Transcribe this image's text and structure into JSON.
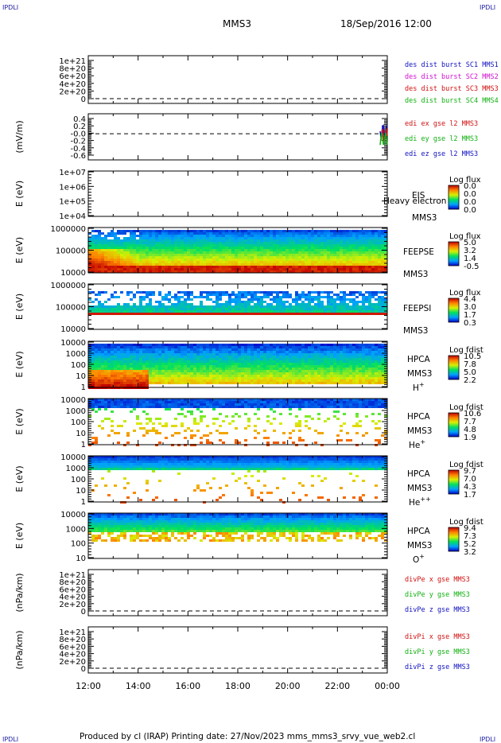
{
  "corners": {
    "tl": "IPDLI",
    "tr": "IPDLI",
    "bl": "IPDLI",
    "br": "IPDLI"
  },
  "header": {
    "spacecraft": "MMS3",
    "datetime": "18/Sep/2016 12:00"
  },
  "footer": {
    "text": "Produced by cl (IRAP)   Printing date: 27/Nov/2023   mms_mms3_srvy_vue_web2.cl"
  },
  "chart_data": [
    {
      "id": "p1",
      "type": "line",
      "ylabel": "",
      "yticks": [
        "1e+21",
        "8e+20",
        "6e+20",
        "4e+20",
        "2e+20",
        "0"
      ],
      "dashed_zero": true,
      "legend": [
        {
          "name": "des dist burst SC1 MMS1",
          "color": "#1010c0"
        },
        {
          "name": "des dist burst SC2 MMS2",
          "color": "#d010d0"
        },
        {
          "name": "des dist burst SC3 MMS3",
          "color": "#d01010"
        },
        {
          "name": "des dist burst SC4 MMS4",
          "color": "#10b010"
        }
      ]
    },
    {
      "id": "p2",
      "type": "line",
      "ylabel": "(mV/m)",
      "yticks": [
        "0.4",
        "0.2",
        "-0.0",
        "-0.2",
        "-0.4",
        "-0.6"
      ],
      "ylim": [
        -0.7,
        0.5
      ],
      "dashed_zero": true,
      "legend": [
        {
          "name": "edi ex gse l2 MMS3",
          "color": "#d01010"
        },
        {
          "name": "edi ey gse l2 MMS3",
          "color": "#10b010"
        },
        {
          "name": "edi ez gse l2 MMS3",
          "color": "#1010c0"
        }
      ]
    },
    {
      "id": "p3",
      "type": "heatmap",
      "ylabel": "E (eV)",
      "yticks": [
        "1e+07",
        "1e+06",
        "1e+05",
        "1e+04"
      ],
      "label_lines": [
        "EIS",
        "Heavy electron to",
        "MMS3"
      ],
      "cbar_title": "Log flux",
      "cbar_ticks": [
        "0.0",
        "0.0",
        "0.0",
        "0.0"
      ]
    },
    {
      "id": "p4",
      "type": "heatmap",
      "ylabel": "E (eV)",
      "yticks": [
        "1000000",
        "100000",
        "10000"
      ],
      "label_lines": [
        "FEEPSE",
        "MMS3"
      ],
      "cbar_title": "Log flux",
      "cbar_ticks": [
        "5.0",
        "3.2",
        "1.4",
        "-0.5"
      ]
    },
    {
      "id": "p5",
      "type": "heatmap",
      "ylabel": "E (eV)",
      "yticks": [
        "1000000",
        "100000",
        "10000"
      ],
      "label_lines": [
        "FEEPSI",
        "MMS3"
      ],
      "cbar_title": "Log flux",
      "cbar_ticks": [
        "4.4",
        "3.0",
        "1.7",
        "0.3"
      ]
    },
    {
      "id": "p6",
      "type": "heatmap",
      "ylabel": "E (eV)",
      "yticks": [
        "10000",
        "1000",
        "100",
        "10",
        "1"
      ],
      "label_lines": [
        "HPCA",
        "MMS3"
      ],
      "species": {
        "base": "H",
        "sup": "+"
      },
      "cbar_title": "Log fdist",
      "cbar_ticks": [
        "10.5",
        "7.8",
        "5.0",
        "2.2"
      ]
    },
    {
      "id": "p7",
      "type": "heatmap",
      "ylabel": "E (eV)",
      "yticks": [
        "10000",
        "1000",
        "100",
        "10",
        "1"
      ],
      "label_lines": [
        "HPCA",
        "MMS3"
      ],
      "species": {
        "base": "He",
        "sup": "+"
      },
      "cbar_title": "Log fdist",
      "cbar_ticks": [
        "10.6",
        "7.7",
        "4.8",
        "1.9"
      ]
    },
    {
      "id": "p8",
      "type": "heatmap",
      "ylabel": "E (eV)",
      "yticks": [
        "10000",
        "1000",
        "100",
        "10",
        "1"
      ],
      "label_lines": [
        "HPCA",
        "MMS3"
      ],
      "species": {
        "base": "He",
        "sup": "++"
      },
      "cbar_title": "Log fdist",
      "cbar_ticks": [
        "9.7",
        "7.0",
        "4.3",
        "1.7"
      ]
    },
    {
      "id": "p9",
      "type": "heatmap",
      "ylabel": "E (eV)",
      "yticks": [
        "10000",
        "1000",
        "100",
        "10"
      ],
      "label_lines": [
        "HPCA",
        "MMS3"
      ],
      "species": {
        "base": "O",
        "sup": "+"
      },
      "cbar_title": "Log fdist",
      "cbar_ticks": [
        "9.4",
        "7.3",
        "5.2",
        "3.2"
      ]
    },
    {
      "id": "p10",
      "type": "line",
      "ylabel": "(nPa/km)",
      "yticks": [
        "1e+21",
        "8e+20",
        "6e+20",
        "4e+20",
        "2e+20",
        "0"
      ],
      "dashed_zero": true,
      "legend": [
        {
          "name": "divPe x gse MMS3",
          "color": "#d01010"
        },
        {
          "name": "divPe y gse MMS3",
          "color": "#10b010"
        },
        {
          "name": "divPe z gse MMS3",
          "color": "#1010c0"
        }
      ]
    },
    {
      "id": "p11",
      "type": "line",
      "ylabel": "(nPa/km)",
      "yticks": [
        "1e+21",
        "8e+20",
        "6e+20",
        "4e+20",
        "2e+20",
        "0"
      ],
      "dashed_zero": true,
      "legend": [
        {
          "name": "divPi x gse MMS3",
          "color": "#d01010"
        },
        {
          "name": "divPi y gse MMS3",
          "color": "#10b010"
        },
        {
          "name": "divPi z gse MMS3",
          "color": "#1010c0"
        }
      ]
    }
  ],
  "time_axis": {
    "ticks": [
      "12:00",
      "14:00",
      "16:00",
      "18:00",
      "20:00",
      "22:00",
      "00:00"
    ]
  }
}
